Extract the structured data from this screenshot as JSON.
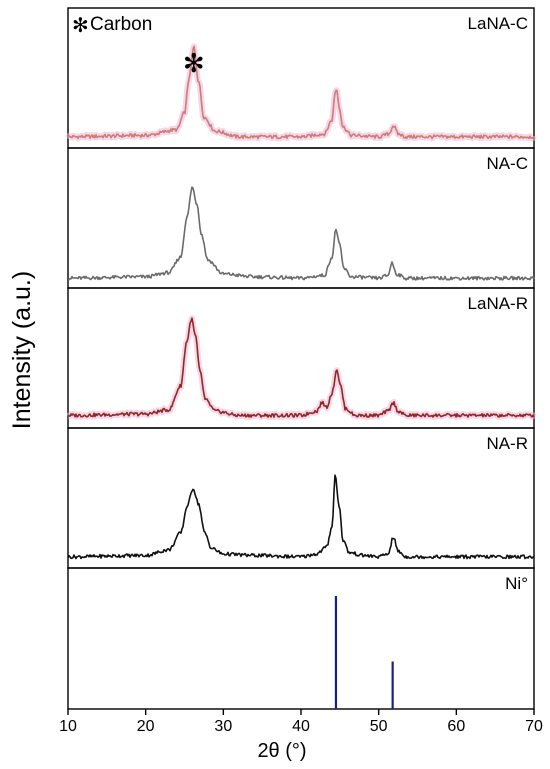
{
  "chart_data": {
    "type": "line",
    "title": "",
    "xlabel": "2θ (°)",
    "ylabel": "Intensity (a.u.)",
    "xlim": [
      10,
      70
    ],
    "x_ticks": [
      10,
      20,
      30,
      40,
      50,
      60,
      70
    ],
    "grid": false,
    "legend": "none",
    "annotation": {
      "symbol": "✻",
      "label": "Carbon",
      "marker_peak_x": 26.2
    },
    "series": [
      {
        "name": "LaNA-C",
        "color": "#c97f73",
        "x": [
          10,
          20,
          24,
          25,
          25.6,
          26.2,
          26.8,
          27.5,
          29,
          32,
          40,
          43,
          44,
          44.4,
          44.6,
          44.9,
          45.4,
          46.5,
          50,
          51.3,
          51.9,
          52.5,
          53.5,
          60,
          70
        ],
        "y": [
          0.08,
          0.09,
          0.13,
          0.25,
          0.5,
          0.72,
          0.48,
          0.22,
          0.12,
          0.08,
          0.08,
          0.1,
          0.2,
          0.4,
          0.42,
          0.3,
          0.15,
          0.09,
          0.08,
          0.1,
          0.16,
          0.1,
          0.08,
          0.08,
          0.08
        ]
      },
      {
        "name": "NA-C",
        "color": "#6b6b6b",
        "x": [
          10,
          20,
          23,
          24.5,
          25.3,
          26,
          26.6,
          27.2,
          28,
          30,
          34,
          40,
          43,
          44,
          44.5,
          45,
          45.5,
          46.5,
          50,
          51.2,
          51.7,
          52.3,
          53.5,
          60,
          70
        ],
        "y": [
          0.07,
          0.08,
          0.11,
          0.22,
          0.5,
          0.72,
          0.6,
          0.38,
          0.2,
          0.1,
          0.08,
          0.07,
          0.09,
          0.22,
          0.42,
          0.3,
          0.14,
          0.08,
          0.07,
          0.09,
          0.18,
          0.1,
          0.07,
          0.07,
          0.07
        ]
      },
      {
        "name": "LaNA-R",
        "color": "#8f2a1e",
        "x": [
          10,
          20,
          23,
          24.5,
          25.3,
          25.9,
          26.4,
          27,
          27.7,
          29,
          32,
          40,
          42,
          42.7,
          43.3,
          44,
          44.6,
          45.1,
          45.7,
          47,
          50,
          51.2,
          51.9,
          52.5,
          53.5,
          60,
          70
        ],
        "y": [
          0.09,
          0.1,
          0.13,
          0.3,
          0.62,
          0.78,
          0.66,
          0.4,
          0.2,
          0.12,
          0.09,
          0.09,
          0.12,
          0.18,
          0.15,
          0.25,
          0.42,
          0.3,
          0.14,
          0.09,
          0.09,
          0.12,
          0.18,
          0.12,
          0.09,
          0.09,
          0.09
        ]
      },
      {
        "name": "NA-R",
        "color": "#111111",
        "x": [
          10,
          20,
          23,
          24.5,
          25.4,
          26.1,
          26.8,
          27.6,
          28.5,
          30,
          34,
          40,
          42,
          43.3,
          44,
          44.4,
          44.9,
          45.4,
          46.2,
          48,
          50,
          51.2,
          51.9,
          52.5,
          53.5,
          60,
          70
        ],
        "y": [
          0.08,
          0.09,
          0.13,
          0.25,
          0.45,
          0.57,
          0.46,
          0.25,
          0.14,
          0.1,
          0.09,
          0.08,
          0.1,
          0.15,
          0.3,
          0.66,
          0.45,
          0.2,
          0.11,
          0.09,
          0.08,
          0.1,
          0.22,
          0.12,
          0.08,
          0.08,
          0.08
        ]
      }
    ],
    "reference": {
      "name": "Ni°",
      "color": "#1c1c8c",
      "x": [
        44.5,
        51.8
      ],
      "relative_intensity": [
        1.0,
        0.42
      ]
    }
  }
}
